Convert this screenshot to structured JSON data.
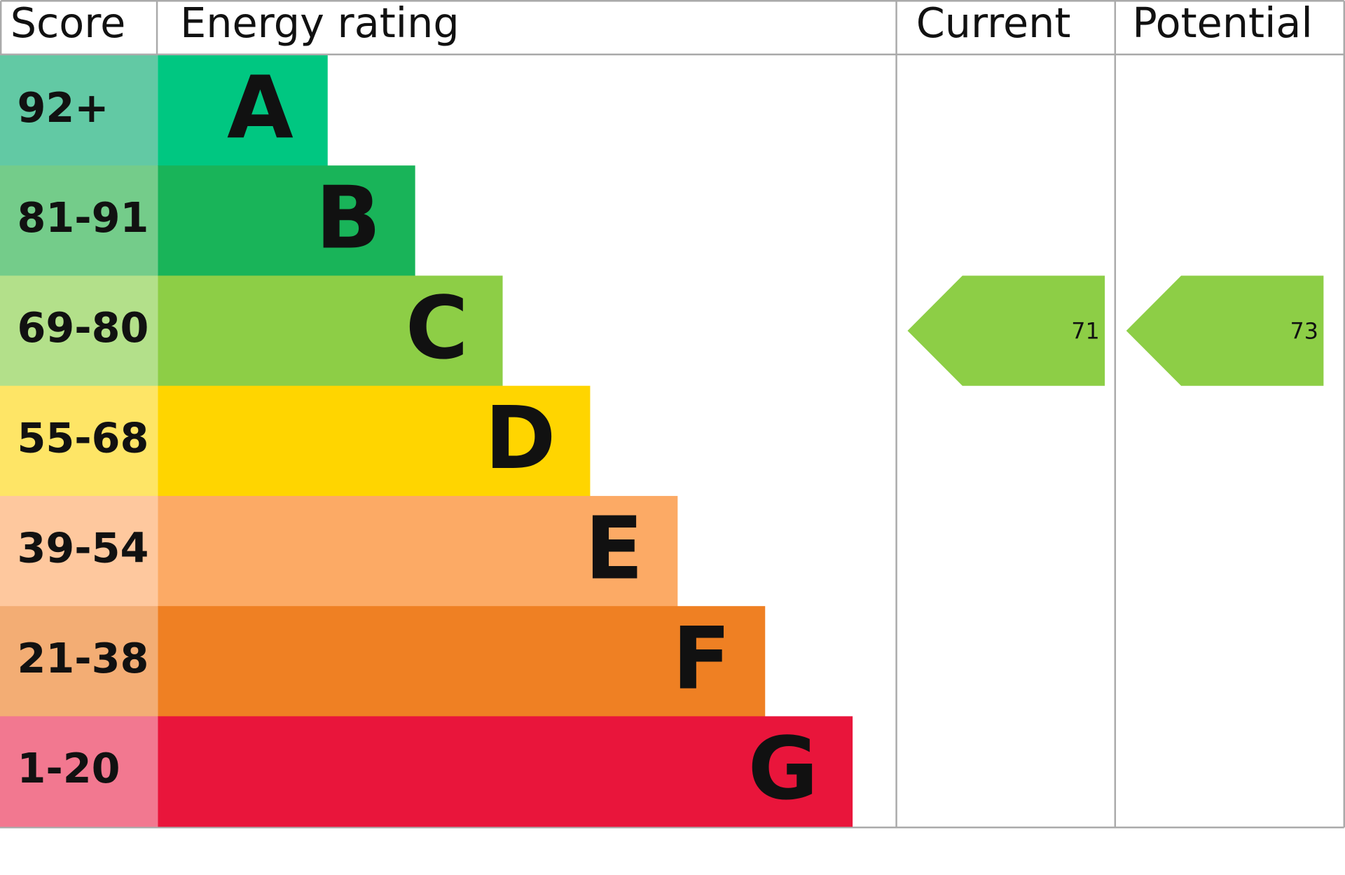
{
  "chart_data": {
    "type": "epc",
    "headers": {
      "score": "Score",
      "rating": "Energy rating",
      "current": "Current",
      "potential": "Potential"
    },
    "bands": [
      {
        "score": "92+",
        "letter": "A",
        "color": "#00c781",
        "score_color": "#62c9a4"
      },
      {
        "score": "81-91",
        "letter": "B",
        "color": "#19b459",
        "score_color": "#74cc8a"
      },
      {
        "score": "69-80",
        "letter": "C",
        "color": "#8dce46",
        "score_color": "#b3e08a"
      },
      {
        "score": "55-68",
        "letter": "D",
        "color": "#ffd500",
        "score_color": "#fee566"
      },
      {
        "score": "39-54",
        "letter": "E",
        "color": "#fcaa65",
        "score_color": "#fec89e"
      },
      {
        "score": "21-38",
        "letter": "F",
        "color": "#ef8023",
        "score_color": "#f3ad74"
      },
      {
        "score": "1-20",
        "letter": "G",
        "color": "#e9153b",
        "score_color": "#f27890"
      }
    ],
    "current": {
      "value": 71,
      "color": "#8dce46"
    },
    "potential": {
      "value": 73,
      "color": "#8dce46"
    }
  }
}
